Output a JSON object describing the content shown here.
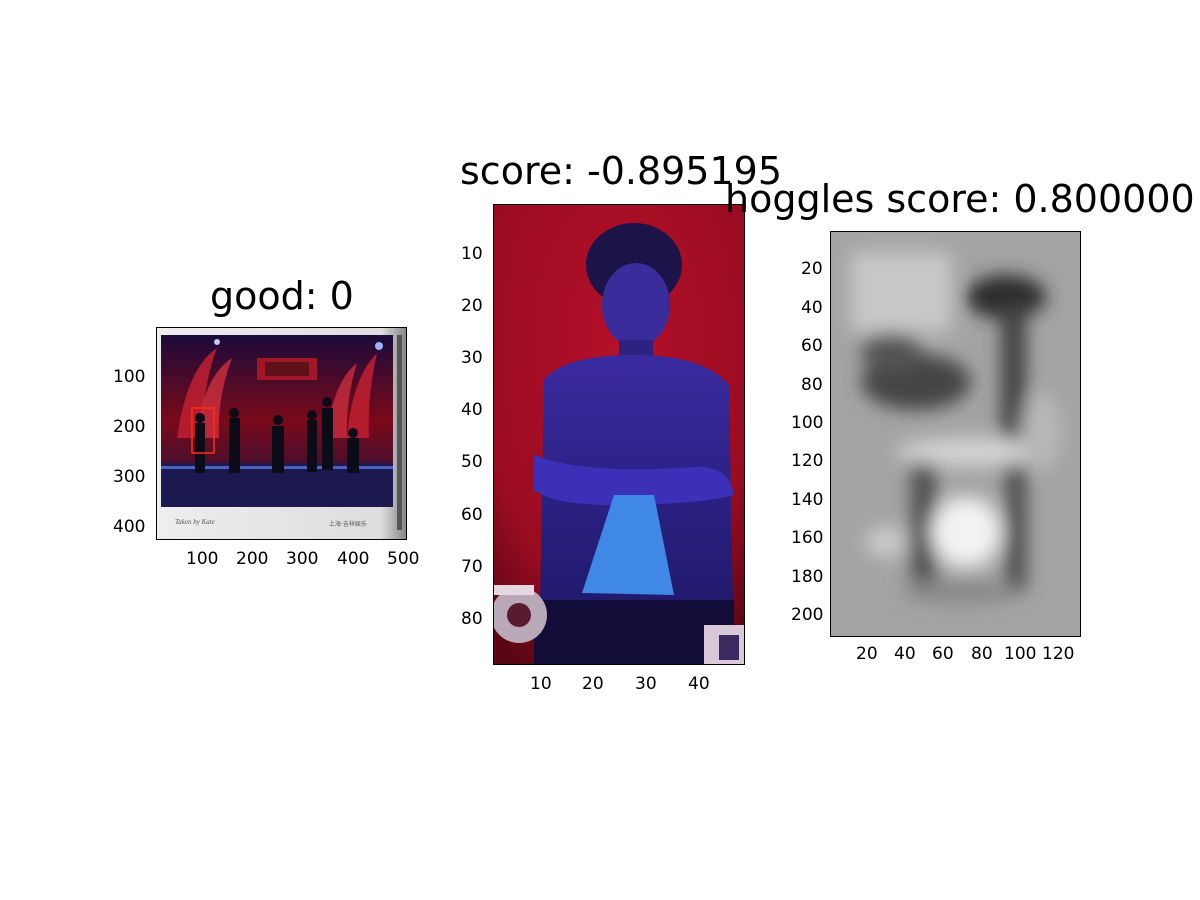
{
  "panels": [
    {
      "title": "good: 0",
      "x_ticks": [
        "100",
        "200",
        "300",
        "400",
        "500"
      ],
      "y_ticks": [
        "100",
        "200",
        "300",
        "400"
      ],
      "image_caption_left": "Taken by Kate",
      "image_caption_right": "上海·吉祥娱乐"
    },
    {
      "title": "score: -0.895195",
      "x_ticks": [
        "10",
        "20",
        "30",
        "40"
      ],
      "y_ticks": [
        "10",
        "20",
        "30",
        "40",
        "50",
        "60",
        "70",
        "80"
      ]
    },
    {
      "title": "hoggles score: 0.800000",
      "x_ticks": [
        "20",
        "40",
        "60",
        "80",
        "100",
        "120"
      ],
      "y_ticks": [
        "20",
        "40",
        "60",
        "80",
        "100",
        "120",
        "140",
        "160",
        "180",
        "200"
      ]
    }
  ]
}
